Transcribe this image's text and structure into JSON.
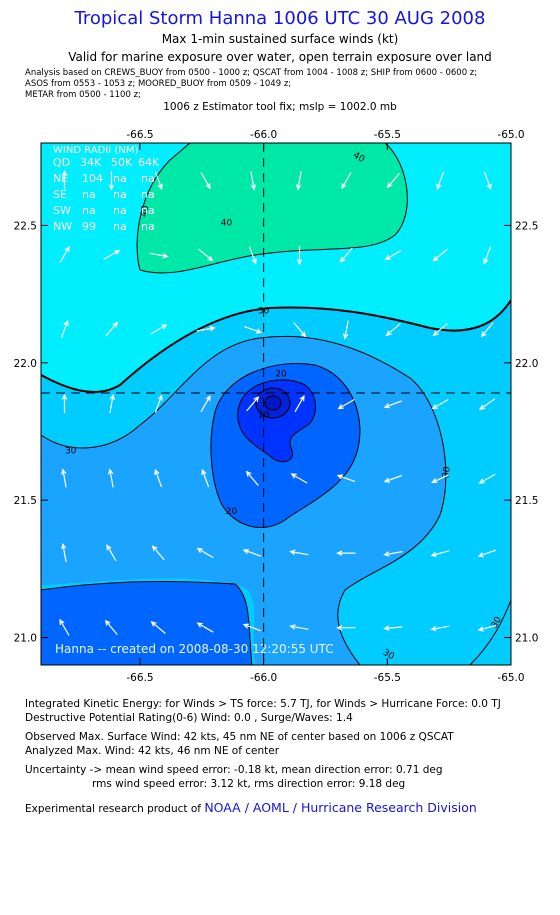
{
  "header": {
    "title": "Tropical Storm Hanna 1006 UTC 30 AUG 2008",
    "subtitle": "Max 1-min sustained surface winds (kt)",
    "valid_note": "Valid for marine exposure over water, open terrain exposure over land",
    "analysis_lines": [
      "Analysis based on  CREWS_BUOY from 0500 - 1000 z;  QSCAT from 1004 - 1008 z;  SHIP from 0600 - 0600 z;",
      "ASOS from 0553 - 1053 z;  MOORED_BUOY from 0509 - 1049 z;",
      "METAR from 0500 - 1100 z;"
    ],
    "fix_line": "1006 z Estimator tool fix; mslp = 1002.0 mb"
  },
  "chart_data": {
    "type": "contour",
    "title": "Tropical Storm Hanna 1006 UTC 30 AUG 2008",
    "xlabel": "",
    "ylabel": "",
    "xlim": [
      -66.9,
      -65.0
    ],
    "ylim": [
      20.9,
      22.8
    ],
    "x_ticks": [
      "-66.5",
      "-66.0",
      "-65.5",
      "-65.0"
    ],
    "y_ticks": [
      "21.0",
      "21.5",
      "22.0",
      "22.5"
    ],
    "grid": false,
    "center": {
      "lon": -66.0,
      "lat": 21.89
    },
    "contour_levels_kt": [
      10,
      20,
      30,
      34,
      40
    ],
    "contour_labels": [
      {
        "text": "40",
        "lon": -66.47,
        "lat": 22.55,
        "rot": -80
      },
      {
        "text": "40",
        "lon": -66.15,
        "lat": 22.5,
        "rot": 0
      },
      {
        "text": "40",
        "lon": -65.62,
        "lat": 22.74,
        "rot": 30
      },
      {
        "text": "30",
        "lon": -66.0,
        "lat": 22.18,
        "rot": 0
      },
      {
        "text": "30",
        "lon": -66.78,
        "lat": 21.67,
        "rot": 0
      },
      {
        "text": "30",
        "lon": -65.25,
        "lat": 21.6,
        "rot": -80
      },
      {
        "text": "30",
        "lon": -65.5,
        "lat": 20.93,
        "rot": 30
      },
      {
        "text": "30",
        "lon": -65.05,
        "lat": 21.05,
        "rot": -60
      },
      {
        "text": "20",
        "lon": -65.93,
        "lat": 21.95,
        "rot": 0
      },
      {
        "text": "20",
        "lon": -66.13,
        "lat": 21.45,
        "rot": 0
      },
      {
        "text": "10",
        "lon": -66.0,
        "lat": 21.8,
        "rot": 0
      }
    ],
    "wind_radii": {
      "title": "WIND RADII (NM)",
      "header": [
        "QD",
        "34K",
        "50K",
        "64K"
      ],
      "rows": [
        [
          "NE",
          "104",
          "na",
          "na"
        ],
        [
          "SE",
          "na",
          "na",
          "na"
        ],
        [
          "SW",
          "na",
          "na",
          "na"
        ],
        [
          "NW",
          "99",
          "na",
          "na"
        ]
      ]
    },
    "watermark": "Hanna -- created on 2008-08-30 12:20:55 UTC",
    "wind_vectors_deg": [
      [
        0,
        180,
        160,
        150,
        170,
        190,
        210,
        220,
        200,
        160
      ],
      [
        30,
        60,
        100,
        130,
        160,
        180,
        220,
        240,
        230,
        200
      ],
      [
        20,
        40,
        60,
        80,
        110,
        140,
        190,
        230,
        230,
        220
      ],
      [
        0,
        10,
        20,
        30,
        40,
        30,
        240,
        250,
        240,
        235
      ],
      [
        350,
        350,
        340,
        340,
        320,
        300,
        290,
        250,
        245,
        240
      ],
      [
        350,
        330,
        320,
        300,
        290,
        280,
        270,
        260,
        255,
        250
      ],
      [
        330,
        320,
        310,
        300,
        290,
        280,
        270,
        265,
        260,
        255
      ]
    ],
    "colors": {
      "below_20": "#0066ff",
      "band_20_30": "#1aa3ff",
      "band_30_34": "#00ccff",
      "band_34_40": "#00eeff",
      "above_40": "#00e8a8",
      "core": "#0033ff"
    }
  },
  "footer": {
    "ike_line": "Integrated Kinetic Energy:  for Winds > TS force: 5.7 TJ,  for Winds > Hurricane Force: 0.0 TJ",
    "dpr_line": "Destructive Potential Rating(0-6)   Wind: 0.0 , Surge/Waves: 1.4",
    "observed_line": "Observed Max. Surface Wind: 42 kts, 45 nm NE of center based on 1006 z QSCAT",
    "analyzed_line": "Analyzed Max. Wind: 42 kts, 46 nm NE of center",
    "uncertainty_line1": "Uncertainty -> mean wind speed error:  -0.18 kt,   mean direction error: 0.71 deg",
    "uncertainty_line2": "rms wind speed error: 3.12 kt,   rms direction error: 9.18 deg",
    "product_prefix": "Experimental research product of ",
    "product_link": "NOAA / AOML / Hurricane Research Division"
  }
}
